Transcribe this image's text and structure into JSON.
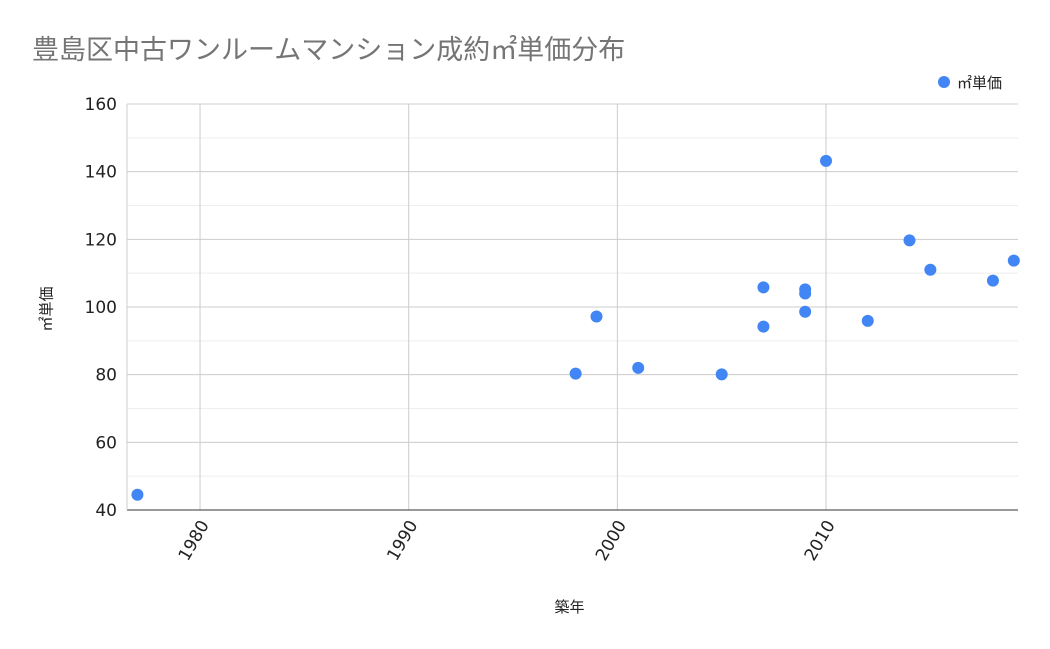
{
  "chart_data": {
    "type": "scatter",
    "title": "豊島区中古ワンルームマンション成約㎡単価分布",
    "xlabel": "築年",
    "ylabel": "㎡単価",
    "xlim": [
      1976.5,
      2019.2
    ],
    "ylim": [
      40,
      160
    ],
    "x_ticks": [
      1980,
      1990,
      2000,
      2010
    ],
    "x_tick_labels": [
      "1980",
      "1990",
      "2000",
      "2010"
    ],
    "y_ticks": [
      40,
      60,
      80,
      100,
      120,
      140,
      160
    ],
    "y_tick_labels": [
      "40",
      "60",
      "80",
      "100",
      "120",
      "140",
      "160"
    ],
    "grid": true,
    "legend_position": "top-right",
    "series": [
      {
        "name": "㎡単価",
        "color": "#4285f4",
        "points": [
          {
            "x": 1977,
            "y": 44.5
          },
          {
            "x": 1998,
            "y": 80.3
          },
          {
            "x": 1999,
            "y": 97.2
          },
          {
            "x": 2001,
            "y": 82.0
          },
          {
            "x": 2005,
            "y": 80.1
          },
          {
            "x": 2007,
            "y": 105.8
          },
          {
            "x": 2007,
            "y": 94.2
          },
          {
            "x": 2009,
            "y": 105.2
          },
          {
            "x": 2009,
            "y": 104.0
          },
          {
            "x": 2009,
            "y": 98.6
          },
          {
            "x": 2010,
            "y": 143.2
          },
          {
            "x": 2012,
            "y": 95.9
          },
          {
            "x": 2014,
            "y": 119.7
          },
          {
            "x": 2015,
            "y": 111.0
          },
          {
            "x": 2018,
            "y": 107.8
          },
          {
            "x": 2019,
            "y": 113.7
          }
        ]
      }
    ]
  }
}
